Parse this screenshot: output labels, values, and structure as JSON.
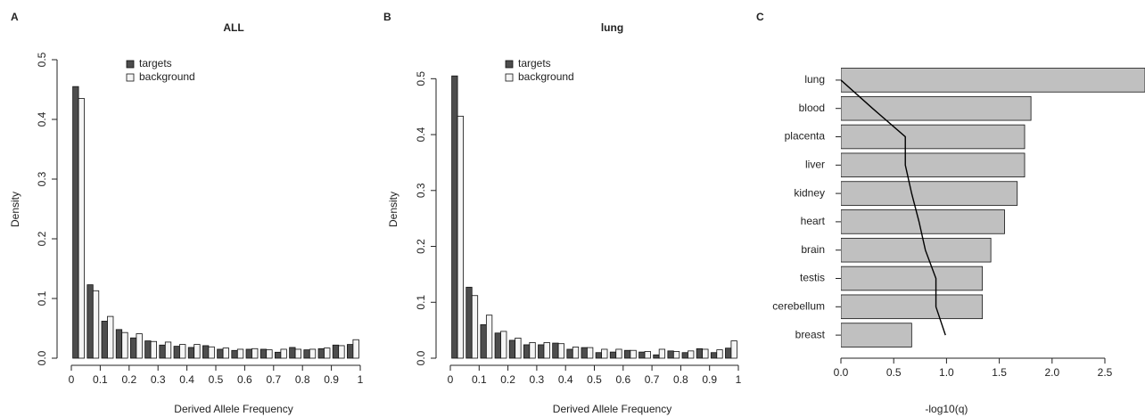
{
  "chart_data": [
    {
      "type": "histogram",
      "panel_label": "A",
      "title": "ALL",
      "x_label": "Derived Allele Frequency",
      "y_label": "Density",
      "bins": [
        0,
        0.05,
        0.1,
        0.15,
        0.2,
        0.25,
        0.3,
        0.35,
        0.4,
        0.45,
        0.5,
        0.55,
        0.6,
        0.65,
        0.7,
        0.75,
        0.8,
        0.85,
        0.9,
        0.95,
        1
      ],
      "series": [
        {
          "name": "targets",
          "color": "#4d4d4d",
          "values": [
            0.455,
            0.123,
            0.062,
            0.048,
            0.034,
            0.029,
            0.022,
            0.02,
            0.018,
            0.021,
            0.015,
            0.013,
            0.015,
            0.015,
            0.01,
            0.018,
            0.014,
            0.016,
            0.022,
            0.023
          ]
        },
        {
          "name": "background",
          "color": "#f5f5f5",
          "values": [
            0.435,
            0.113,
            0.07,
            0.043,
            0.041,
            0.028,
            0.027,
            0.023,
            0.023,
            0.019,
            0.017,
            0.015,
            0.016,
            0.014,
            0.015,
            0.015,
            0.015,
            0.017,
            0.021,
            0.031
          ]
        }
      ],
      "xlim": [
        0,
        1
      ],
      "xticks": [
        0,
        0.1,
        0.2,
        0.3,
        0.4,
        0.5,
        0.6,
        0.7,
        0.8,
        0.9,
        1
      ],
      "ylim": [
        0,
        0.5
      ],
      "yticks": [
        {
          "value": 0,
          "label": "0.0"
        },
        0.1,
        0.2,
        0.3,
        0.4,
        0.5
      ],
      "legend": "top"
    },
    {
      "type": "histogram",
      "panel_label": "B",
      "title": "lung",
      "x_label": "Derived Allele Frequency",
      "y_label": "Density",
      "bins": [
        0,
        0.05,
        0.1,
        0.15,
        0.2,
        0.25,
        0.3,
        0.35,
        0.4,
        0.45,
        0.5,
        0.55,
        0.6,
        0.65,
        0.7,
        0.75,
        0.8,
        0.85,
        0.9,
        0.95,
        1
      ],
      "series": [
        {
          "name": "targets",
          "color": "#4d4d4d",
          "values": [
            0.505,
            0.127,
            0.06,
            0.045,
            0.032,
            0.024,
            0.024,
            0.027,
            0.016,
            0.019,
            0.01,
            0.011,
            0.014,
            0.011,
            0.006,
            0.013,
            0.01,
            0.017,
            0.01,
            0.018
          ]
        },
        {
          "name": "background",
          "color": "#f5f5f5",
          "values": [
            0.433,
            0.112,
            0.077,
            0.048,
            0.036,
            0.028,
            0.028,
            0.026,
            0.02,
            0.019,
            0.016,
            0.016,
            0.014,
            0.012,
            0.016,
            0.012,
            0.013,
            0.016,
            0.015,
            0.031
          ]
        }
      ],
      "xlim": [
        0,
        1
      ],
      "xticks": [
        0,
        0.1,
        0.2,
        0.3,
        0.4,
        0.5,
        0.6,
        0.7,
        0.8,
        0.9,
        1
      ],
      "ylim": [
        0,
        0.534
      ],
      "yticks": [
        {
          "value": 0,
          "label": "0.0"
        },
        0.1,
        0.2,
        0.3,
        0.4,
        0.5
      ],
      "legend": "top"
    },
    {
      "type": "barh",
      "panel_label": "C",
      "x_label": "-log10(q)",
      "categories": [
        "lung",
        "blood",
        "placenta",
        "liver",
        "kidney",
        "heart",
        "brain",
        "testis",
        "cerebellum",
        "breast"
      ],
      "values": [
        2.88,
        1.8,
        1.74,
        1.74,
        1.67,
        1.55,
        1.42,
        1.34,
        1.34,
        0.67
      ],
      "color": "#c0c0c0",
      "line": {
        "color": "#000000",
        "values": [
          0,
          0.3,
          0.61,
          0.61,
          0.67,
          0.74,
          0.8,
          0.9,
          0.9,
          0.99
        ]
      },
      "xlim": [
        0,
        2.88
      ],
      "xticks": [
        {
          "value": 0,
          "label": "0.0"
        },
        0.5,
        {
          "value": 1,
          "label": "1.0"
        },
        1.5,
        {
          "value": 2,
          "label": "2.0"
        },
        2.5
      ]
    }
  ]
}
